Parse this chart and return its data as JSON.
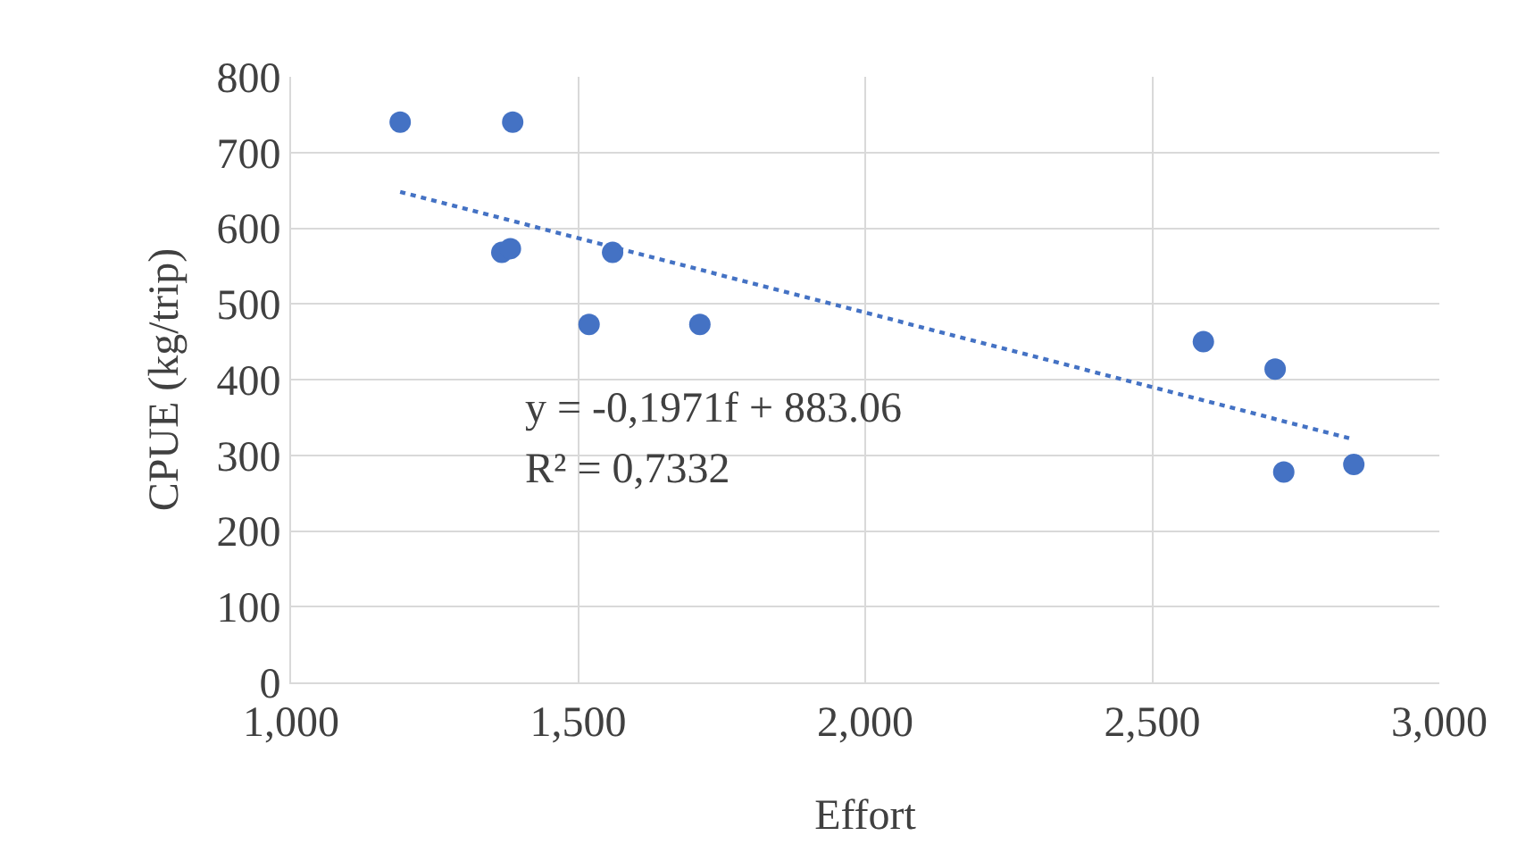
{
  "chart_data": {
    "type": "scatter",
    "xlabel": "Effort",
    "ylabel": "CPUE (kg/trip)",
    "series": [
      {
        "color": "#4472c4",
        "marker": "circle",
        "x": [
          1190,
          1386,
          1367,
          1382,
          1560,
          1519,
          1712,
          2589,
          2714,
          2729,
          2851
        ],
        "values": [
          740,
          740,
          568,
          573,
          568,
          473,
          473,
          450,
          414,
          278,
          288
        ]
      },
      {
        "type": "line",
        "color": "#4472c4",
        "line_style": "dotted",
        "marker": "none",
        "x": [
          1190,
          2851
        ],
        "values": [
          648,
          321
        ]
      }
    ],
    "annotations": [
      "y = -0,1971f + 883.06",
      "R² = 0,7332"
    ],
    "xlim": [
      1000,
      3000
    ],
    "xticks": [
      {
        "value": 1000,
        "label": "1,000"
      },
      {
        "value": 1500,
        "label": "1,500"
      },
      {
        "value": 2000,
        "label": "2,000"
      },
      {
        "value": 2500,
        "label": "2,500"
      },
      {
        "value": 3000,
        "label": "3,000"
      }
    ],
    "ylim": [
      0,
      800
    ],
    "yticks": [
      0,
      100,
      200,
      300,
      400,
      500,
      600,
      700,
      800
    ],
    "grid": true,
    "legend": false
  }
}
